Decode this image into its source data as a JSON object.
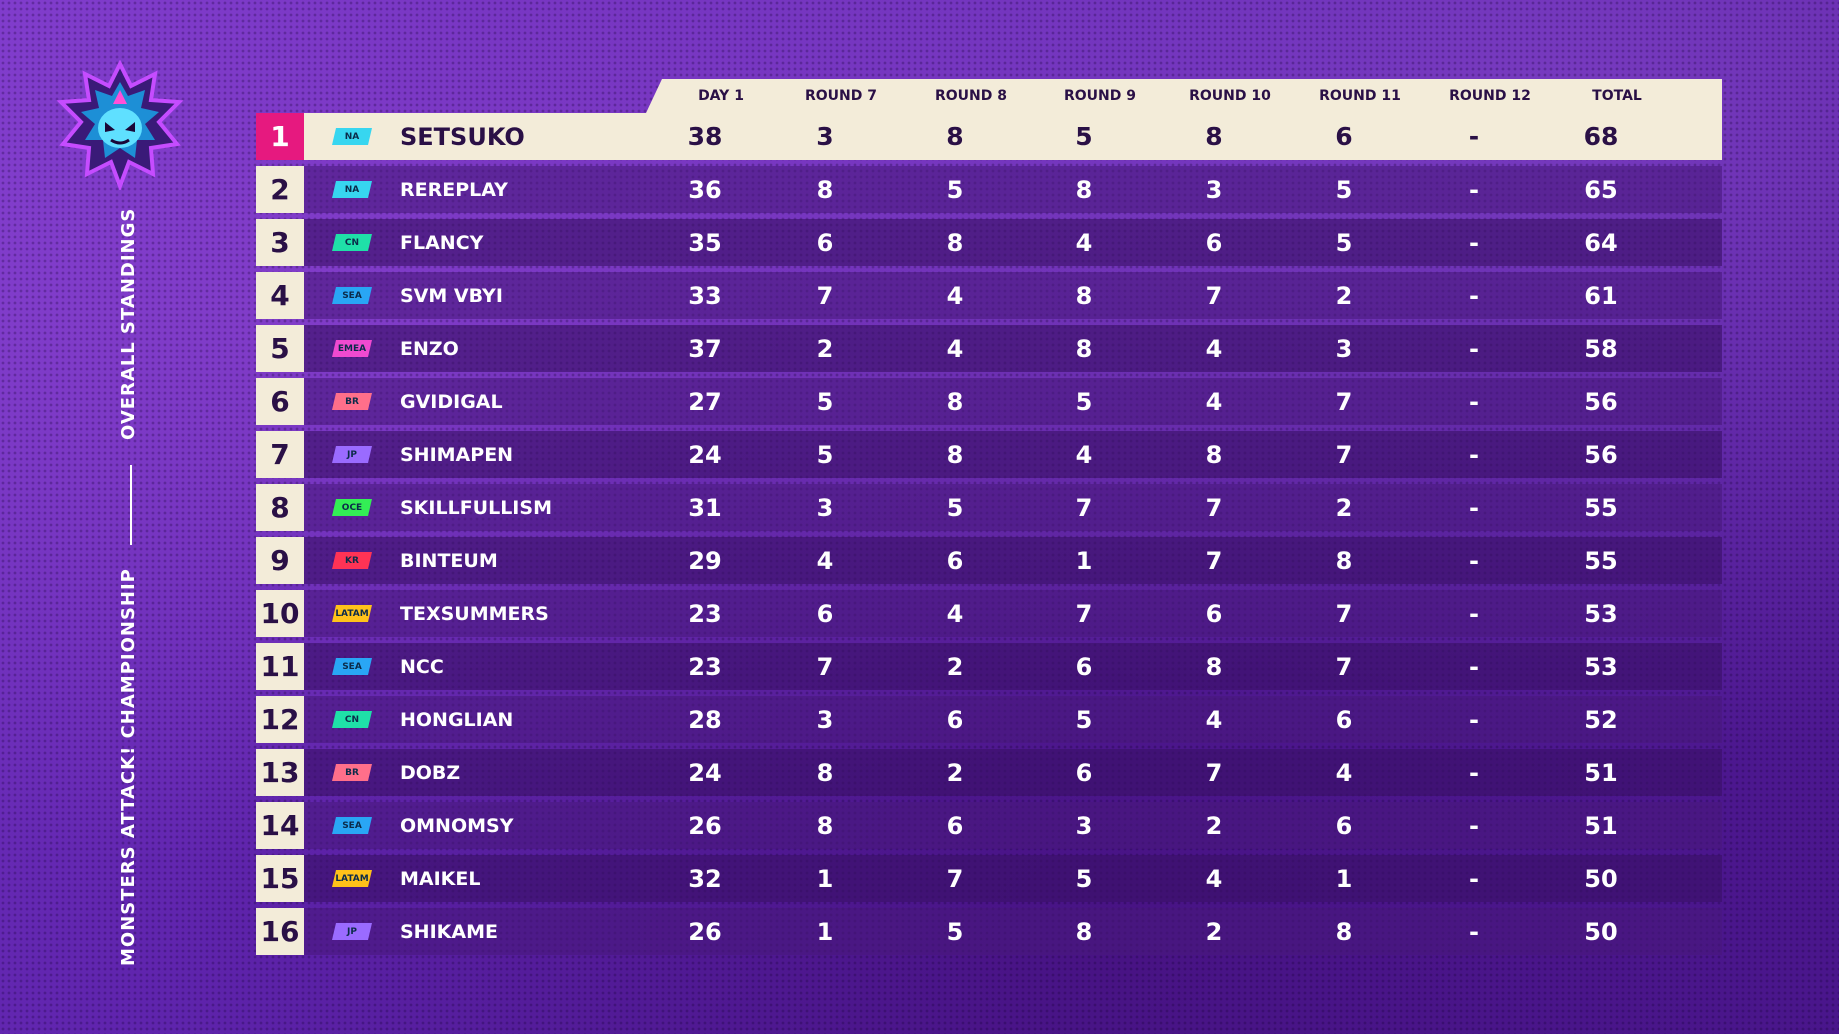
{
  "event": {
    "title_top": "OVERALL STANDINGS",
    "title_bottom": "MONSTERS ATTACK! CHAMPIONSHIP"
  },
  "columns": [
    "DAY 1",
    "ROUND 7",
    "ROUND 8",
    "ROUND 9",
    "ROUND 10",
    "ROUND 11",
    "ROUND 12",
    "TOTAL"
  ],
  "region_colors": {
    "NA": "#37d6f0",
    "CN": "#1fe0a8",
    "SEA": "#29a6f5",
    "EMEA": "#f04ad0",
    "BR": "#ff6f8a",
    "JP": "#9a6bff",
    "OCE": "#33ee55",
    "KR": "#ff3355",
    "LATAM": "#ffc21a"
  },
  "rows": [
    {
      "rank": "1",
      "region": "NA",
      "name": "SETSUKO",
      "values": [
        "38",
        "3",
        "8",
        "5",
        "8",
        "6",
        "-",
        "68"
      ]
    },
    {
      "rank": "2",
      "region": "NA",
      "name": "REREPLAY",
      "values": [
        "36",
        "8",
        "5",
        "8",
        "3",
        "5",
        "-",
        "65"
      ]
    },
    {
      "rank": "3",
      "region": "CN",
      "name": "FLANCY",
      "values": [
        "35",
        "6",
        "8",
        "4",
        "6",
        "5",
        "-",
        "64"
      ]
    },
    {
      "rank": "4",
      "region": "SEA",
      "name": "SVM VBYI",
      "values": [
        "33",
        "7",
        "4",
        "8",
        "7",
        "2",
        "-",
        "61"
      ]
    },
    {
      "rank": "5",
      "region": "EMEA",
      "name": "ENZO",
      "values": [
        "37",
        "2",
        "4",
        "8",
        "4",
        "3",
        "-",
        "58"
      ]
    },
    {
      "rank": "6",
      "region": "BR",
      "name": "GVIDIGAL",
      "values": [
        "27",
        "5",
        "8",
        "5",
        "4",
        "7",
        "-",
        "56"
      ]
    },
    {
      "rank": "7",
      "region": "JP",
      "name": "SHIMAPEN",
      "values": [
        "24",
        "5",
        "8",
        "4",
        "8",
        "7",
        "-",
        "56"
      ]
    },
    {
      "rank": "8",
      "region": "OCE",
      "name": "SKILLFULLISM",
      "values": [
        "31",
        "3",
        "5",
        "7",
        "7",
        "2",
        "-",
        "55"
      ]
    },
    {
      "rank": "9",
      "region": "KR",
      "name": "BINTEUM",
      "values": [
        "29",
        "4",
        "6",
        "1",
        "7",
        "8",
        "-",
        "55"
      ]
    },
    {
      "rank": "10",
      "region": "LATAM",
      "name": "TEXSUMMERS",
      "values": [
        "23",
        "6",
        "4",
        "7",
        "6",
        "7",
        "-",
        "53"
      ]
    },
    {
      "rank": "11",
      "region": "SEA",
      "name": "NCC",
      "values": [
        "23",
        "7",
        "2",
        "6",
        "8",
        "7",
        "-",
        "53"
      ]
    },
    {
      "rank": "12",
      "region": "CN",
      "name": "HONGLIAN",
      "values": [
        "28",
        "3",
        "6",
        "5",
        "4",
        "6",
        "-",
        "52"
      ]
    },
    {
      "rank": "13",
      "region": "BR",
      "name": "DOBZ",
      "values": [
        "24",
        "8",
        "2",
        "6",
        "7",
        "4",
        "-",
        "51"
      ]
    },
    {
      "rank": "14",
      "region": "SEA",
      "name": "OMNOMSY",
      "values": [
        "26",
        "8",
        "6",
        "3",
        "2",
        "6",
        "-",
        "51"
      ]
    },
    {
      "rank": "15",
      "region": "LATAM",
      "name": "MAIKEL",
      "values": [
        "32",
        "1",
        "7",
        "5",
        "4",
        "1",
        "-",
        "50"
      ]
    },
    {
      "rank": "16",
      "region": "JP",
      "name": "SHIKAME",
      "values": [
        "26",
        "1",
        "5",
        "8",
        "2",
        "8",
        "-",
        "50"
      ]
    }
  ]
}
